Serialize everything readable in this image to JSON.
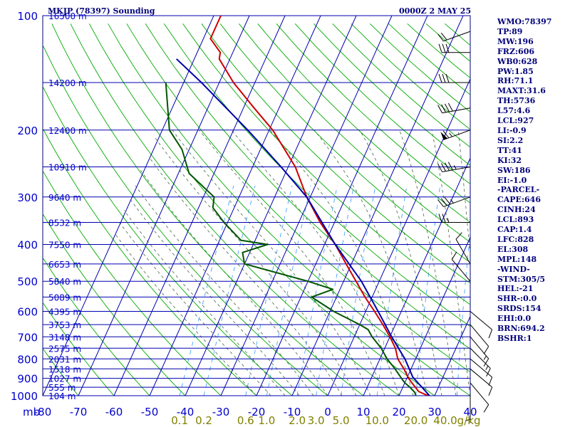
{
  "header": {
    "title": "MKJP (78397) Sounding",
    "time": "0000Z  2 MAY 25"
  },
  "colors": {
    "frame": "#00007a",
    "grid": "#0000b0",
    "dry_adiabat": "#00aa00",
    "moist_adiabat": "#446644",
    "mixing_ratio": "#3399ff",
    "temperature": "#cc0000",
    "dewpoint": "#005500",
    "parcel": "#0000aa",
    "temp_tick_labels": "#0000cc",
    "mixing_ratio_labels": "#808000",
    "height_labels": "#0000cc",
    "stats_text": "#00007a"
  },
  "stats": [
    "WMO:78397",
    "TP:89",
    "MW:196",
    "FRZ:606",
    "WB0:628",
    "PW:1.85",
    "RH:71.1",
    "MAXT:31.6",
    "TH:5736",
    "L57:4.6",
    "LCL:927",
    "LI:-0.9",
    "SI:2.2",
    "TT:41",
    "KI:32",
    "SW:186",
    "EI:-1.0",
    "-PARCEL-",
    "CAPE:646",
    "CINH:24",
    "LCL:893",
    "CAP:1.4",
    "LFC:828",
    "EL:308",
    "MPL:148",
    "-WIND-",
    "STM:305/5",
    "HEL:-21",
    "SHR-:0.0",
    "SRDS:154",
    "EHI:0.0",
    "BRN:694.2",
    "BSHR:1"
  ],
  "chart_data": {
    "type": "line",
    "subtype": "skew-T log-P sounding",
    "pressure_axis": {
      "unit": "mb",
      "scale": "log",
      "range": [
        100,
        1000
      ],
      "ticks": [
        100,
        200,
        300,
        400,
        500,
        600,
        700,
        800,
        900,
        1000
      ]
    },
    "temperature_axis": {
      "unit": "C",
      "range": [
        -80,
        40
      ],
      "skew": true,
      "ticks": [
        -80,
        -70,
        -60,
        -50,
        -40,
        -30,
        -20,
        -10,
        0,
        10,
        20,
        30,
        40
      ]
    },
    "mixing_ratio_axis": {
      "unit": "g/kg",
      "ticks": [
        "0.1",
        "0.2",
        "0.6",
        "1.0",
        "2.0",
        "3.0",
        "5.0",
        "10.0",
        "20.0",
        "40.0"
      ]
    },
    "height_labels": [
      {
        "p": 100,
        "label": "16500 m"
      },
      {
        "p": 150,
        "label": "14200 m"
      },
      {
        "p": 200,
        "label": "12400 m"
      },
      {
        "p": 250,
        "label": "10910 m"
      },
      {
        "p": 300,
        "label": "9640 m"
      },
      {
        "p": 350,
        "label": "8532 m"
      },
      {
        "p": 400,
        "label": "7550 m"
      },
      {
        "p": 450,
        "label": "6653 m"
      },
      {
        "p": 500,
        "label": "5840 m"
      },
      {
        "p": 550,
        "label": "5089 m"
      },
      {
        "p": 600,
        "label": "4395 m"
      },
      {
        "p": 650,
        "label": "3753 m"
      },
      {
        "p": 700,
        "label": "3148 m"
      },
      {
        "p": 750,
        "label": "2575 m"
      },
      {
        "p": 800,
        "label": "2031 m"
      },
      {
        "p": 850,
        "label": "1518 m"
      },
      {
        "p": 900,
        "label": "1027 m"
      },
      {
        "p": 950,
        "label": "555 m"
      },
      {
        "p": 1000,
        "label": "104 m"
      }
    ],
    "series": [
      {
        "key": "temperature",
        "points": [
          [
            1007,
            29
          ],
          [
            975,
            25
          ],
          [
            925,
            22
          ],
          [
            900,
            20.5
          ],
          [
            850,
            18
          ],
          [
            800,
            15
          ],
          [
            750,
            13
          ],
          [
            700,
            10
          ],
          [
            650,
            6.5
          ],
          [
            600,
            2.5
          ],
          [
            550,
            -2
          ],
          [
            500,
            -6.5
          ],
          [
            450,
            -11.5
          ],
          [
            400,
            -17
          ],
          [
            350,
            -24
          ],
          [
            300,
            -31
          ],
          [
            250,
            -38
          ],
          [
            200,
            -49
          ],
          [
            175,
            -57
          ],
          [
            150,
            -66
          ],
          [
            130,
            -73
          ],
          [
            125,
            -73.5
          ],
          [
            115,
            -78
          ],
          [
            100,
            -78
          ]
        ]
      },
      {
        "key": "dewpoint",
        "points": [
          [
            1007,
            25
          ],
          [
            980,
            24
          ],
          [
            950,
            22
          ],
          [
            925,
            20
          ],
          [
            900,
            18.5
          ],
          [
            850,
            15.5
          ],
          [
            800,
            12
          ],
          [
            750,
            9
          ],
          [
            700,
            5
          ],
          [
            670,
            3
          ],
          [
            650,
            0
          ],
          [
            600,
            -9
          ],
          [
            550,
            -17
          ],
          [
            525,
            -12
          ],
          [
            500,
            -20
          ],
          [
            450,
            -40
          ],
          [
            420,
            -42
          ],
          [
            400,
            -36
          ],
          [
            390,
            -44
          ],
          [
            350,
            -51
          ],
          [
            320,
            -56
          ],
          [
            300,
            -57
          ],
          [
            260,
            -67
          ],
          [
            225,
            -72
          ],
          [
            200,
            -78
          ],
          [
            150,
            -85
          ]
        ]
      },
      {
        "key": "parcel",
        "points": [
          [
            1007,
            29
          ],
          [
            893,
            21.5
          ],
          [
            850,
            19.5
          ],
          [
            800,
            17
          ],
          [
            700,
            10.5
          ],
          [
            600,
            3.5
          ],
          [
            500,
            -5
          ],
          [
            400,
            -17
          ],
          [
            300,
            -31
          ],
          [
            250,
            -42
          ],
          [
            200,
            -56
          ],
          [
            150,
            -75
          ],
          [
            130,
            -85
          ]
        ]
      }
    ],
    "wind_barbs": [
      {
        "p": 1000,
        "dir": 180,
        "kt": 5
      },
      {
        "p": 925,
        "dir": 140,
        "kt": 10
      },
      {
        "p": 850,
        "dir": 130,
        "kt": 10
      },
      {
        "p": 800,
        "dir": 130,
        "kt": 10
      },
      {
        "p": 750,
        "dir": 135,
        "kt": 15
      },
      {
        "p": 700,
        "dir": 140,
        "kt": 15
      },
      {
        "p": 650,
        "dir": 140,
        "kt": 10
      },
      {
        "p": 600,
        "dir": 130,
        "kt": 10
      },
      {
        "p": 500,
        "dir": 320,
        "kt": 10
      },
      {
        "p": 450,
        "dir": 330,
        "kt": 10
      },
      {
        "p": 350,
        "dir": 270,
        "kt": 25
      },
      {
        "p": 300,
        "dir": 250,
        "kt": 35
      },
      {
        "p": 250,
        "dir": 260,
        "kt": 45
      },
      {
        "p": 200,
        "dir": 250,
        "kt": 65
      },
      {
        "p": 175,
        "dir": 260,
        "kt": 40
      },
      {
        "p": 150,
        "dir": 270,
        "kt": 30
      },
      {
        "p": 125,
        "dir": 270,
        "kt": 30
      },
      {
        "p": 110,
        "dir": 250,
        "kt": 20
      }
    ]
  }
}
